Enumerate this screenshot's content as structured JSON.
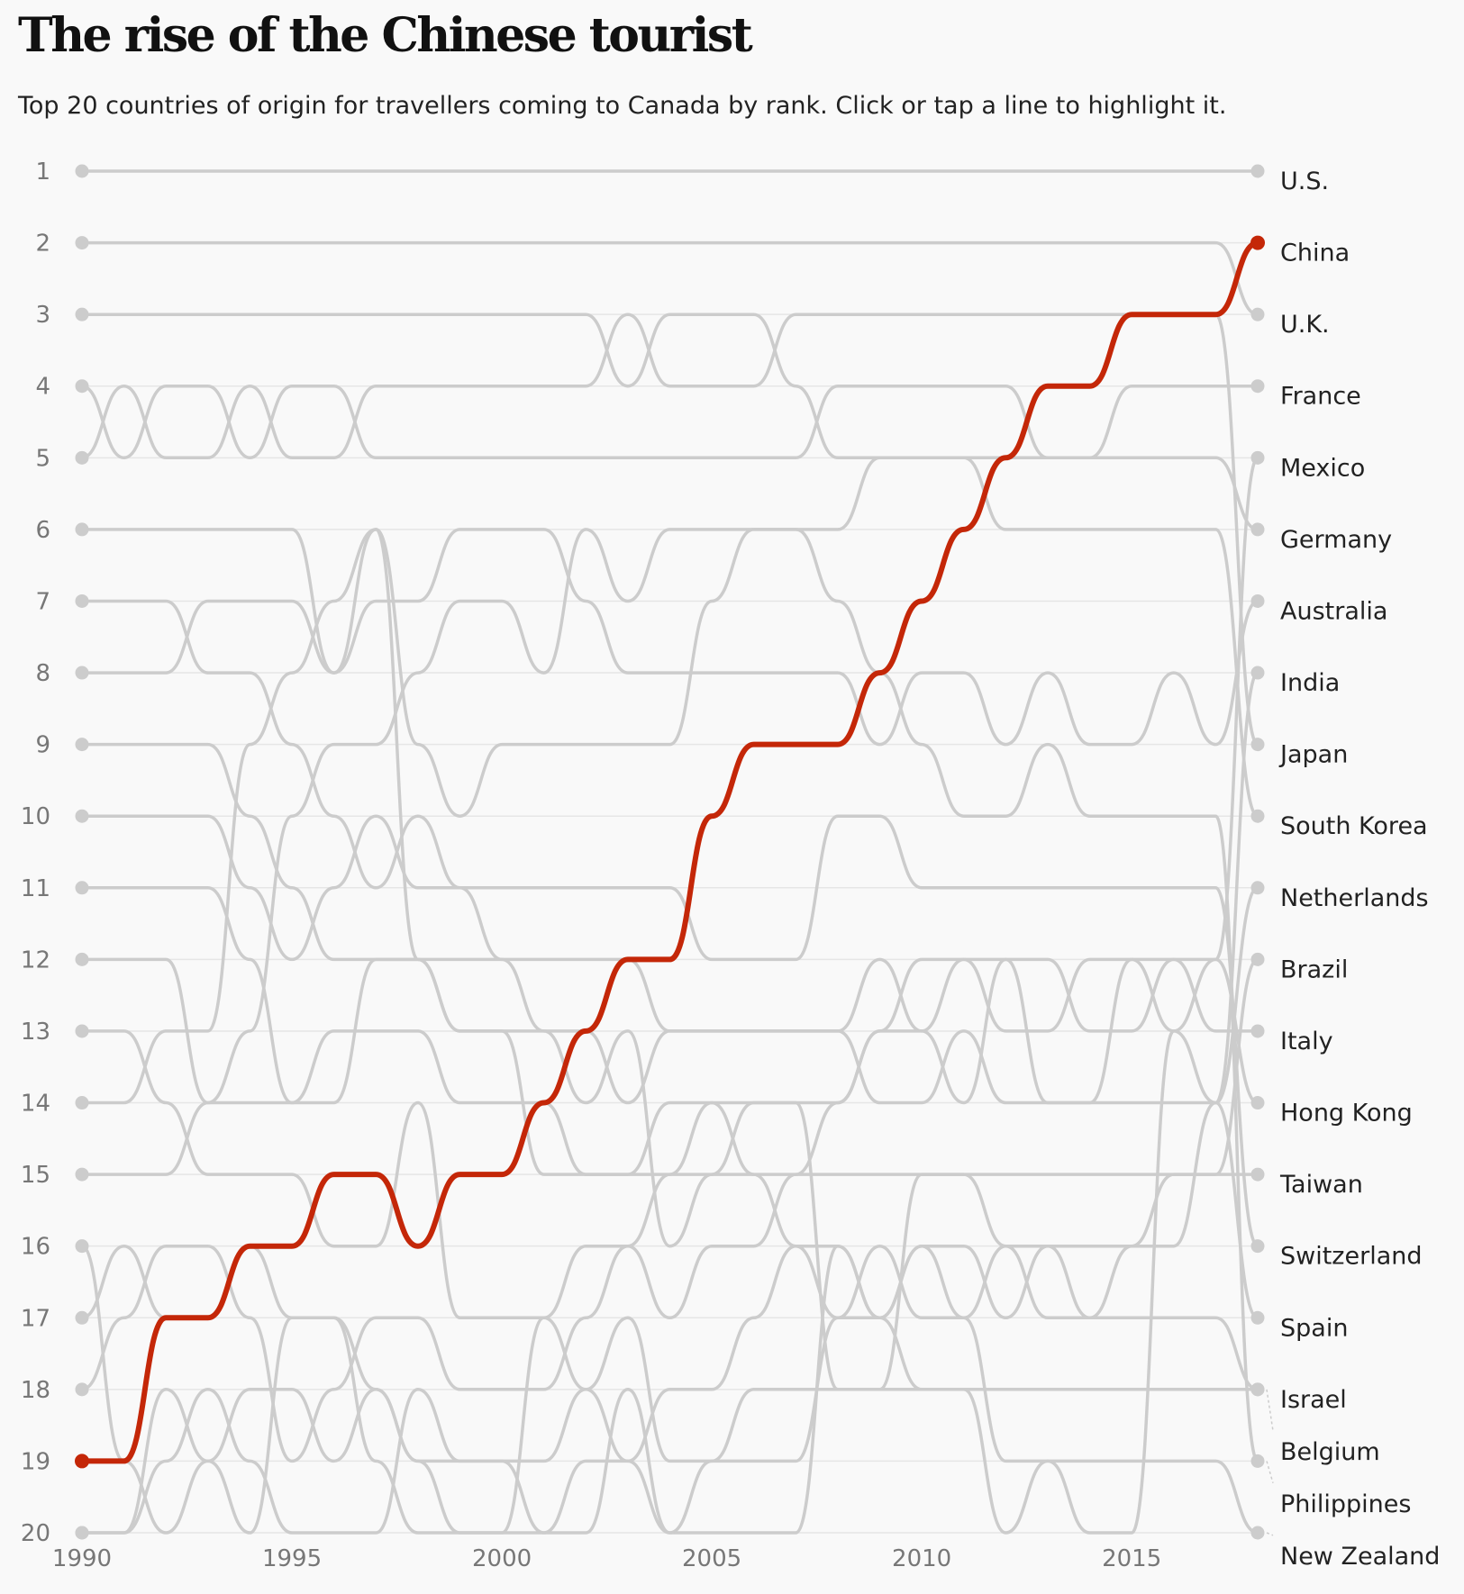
{
  "page": {
    "title": "The rise of the Chinese tourist",
    "subtitle": "Top 20 countries of origin for travellers coming to Canada by rank. Click or tap a line to highlight it."
  },
  "chart_data": {
    "type": "line",
    "title": "The rise of the Chinese tourist",
    "subtitle": "Top 20 countries of origin for travellers coming to Canada by rank. Click or tap a line to highlight it.",
    "x": [
      1990,
      1991,
      1992,
      1993,
      1994,
      1995,
      1996,
      1997,
      1998,
      1999,
      2000,
      2001,
      2002,
      2003,
      2004,
      2005,
      2006,
      2007,
      2008,
      2009,
      2010,
      2011,
      2012,
      2013,
      2014,
      2015,
      2016,
      2017,
      2018
    ],
    "xlim": [
      1990,
      2018
    ],
    "ylim": [
      1,
      20
    ],
    "y_reversed": true,
    "x_ticks": [
      "1990",
      "1995",
      "2000",
      "2005",
      "2010",
      "2015"
    ],
    "y_ticks": [
      "1",
      "2",
      "3",
      "4",
      "5",
      "6",
      "7",
      "8",
      "9",
      "10",
      "11",
      "12",
      "13",
      "14",
      "15",
      "16",
      "17",
      "18",
      "19",
      "20"
    ],
    "highlight": "China",
    "highlight_color": "#c42708",
    "line_color": "#cccccc",
    "grid": true,
    "series": [
      {
        "name": "U.S.",
        "values": [
          1,
          1,
          1,
          1,
          1,
          1,
          1,
          1,
          1,
          1,
          1,
          1,
          1,
          1,
          1,
          1,
          1,
          1,
          1,
          1,
          1,
          1,
          1,
          1,
          1,
          1,
          1,
          1,
          1
        ]
      },
      {
        "name": "China",
        "values": [
          19,
          19,
          17,
          17,
          16,
          16,
          15,
          15,
          16,
          15,
          15,
          14,
          13,
          12,
          12,
          10,
          9,
          9,
          9,
          8,
          7,
          6,
          5,
          4,
          4,
          3,
          3,
          3,
          2
        ]
      },
      {
        "name": "U.K.",
        "values": [
          2,
          2,
          2,
          2,
          2,
          2,
          2,
          2,
          2,
          2,
          2,
          2,
          2,
          2,
          2,
          2,
          2,
          2,
          2,
          2,
          2,
          2,
          2,
          2,
          2,
          2,
          2,
          2,
          3
        ]
      },
      {
        "name": "France",
        "values": [
          3,
          3,
          3,
          3,
          3,
          3,
          3,
          3,
          3,
          3,
          3,
          3,
          3,
          4,
          3,
          3,
          3,
          4,
          5,
          5,
          5,
          5,
          5,
          5,
          5,
          4,
          4,
          4,
          4
        ]
      },
      {
        "name": "Mexico",
        "values": [
          16,
          19,
          20,
          19,
          18,
          18,
          19,
          18,
          19,
          20,
          20,
          17,
          18,
          19,
          20,
          20,
          20,
          20,
          16,
          17,
          18,
          18,
          20,
          19,
          20,
          20,
          13,
          12,
          5
        ]
      },
      {
        "name": "Germany",
        "values": [
          4,
          5,
          4,
          4,
          5,
          4,
          4,
          5,
          5,
          5,
          5,
          5,
          5,
          5,
          5,
          5,
          5,
          5,
          4,
          4,
          4,
          4,
          4,
          5,
          5,
          5,
          5,
          5,
          6
        ]
      },
      {
        "name": "Australia",
        "values": [
          8,
          8,
          8,
          7,
          7,
          7,
          8,
          7,
          7,
          6,
          6,
          6,
          7,
          8,
          8,
          8,
          8,
          8,
          8,
          9,
          8,
          8,
          9,
          8,
          9,
          9,
          8,
          9,
          7
        ]
      },
      {
        "name": "India",
        "values": [
          18,
          17,
          16,
          16,
          17,
          19,
          18,
          17,
          17,
          18,
          18,
          18,
          17,
          16,
          17,
          16,
          16,
          15,
          15,
          15,
          15,
          15,
          16,
          16,
          16,
          16,
          16,
          14,
          8
        ]
      },
      {
        "name": "Japan",
        "values": [
          5,
          4,
          5,
          5,
          4,
          5,
          5,
          4,
          4,
          4,
          4,
          4,
          4,
          3,
          4,
          4,
          4,
          3,
          3,
          3,
          3,
          3,
          3,
          3,
          3,
          3,
          3,
          3,
          9
        ]
      },
      {
        "name": "South Korea",
        "values": [
          14,
          14,
          13,
          13,
          9,
          8,
          7,
          6,
          9,
          10,
          9,
          9,
          9,
          9,
          9,
          7,
          6,
          6,
          6,
          5,
          5,
          5,
          6,
          6,
          6,
          6,
          6,
          6,
          10
        ]
      },
      {
        "name": "Netherlands",
        "values": [
          10,
          10,
          10,
          10,
          11,
          12,
          11,
          10,
          11,
          11,
          12,
          12,
          12,
          12,
          13,
          13,
          13,
          13,
          13,
          14,
          14,
          13,
          14,
          14,
          14,
          14,
          14,
          14,
          11
        ]
      },
      {
        "name": "Brazil",
        "values": [
          20,
          20,
          18,
          19,
          20,
          17,
          17,
          19,
          20,
          20,
          20,
          20,
          20,
          18,
          20,
          19,
          19,
          19,
          17,
          16,
          17,
          17,
          16,
          17,
          17,
          16,
          15,
          15,
          12
        ]
      },
      {
        "name": "Italy",
        "values": [
          11,
          11,
          11,
          11,
          12,
          14,
          13,
          13,
          13,
          14,
          14,
          14,
          15,
          15,
          14,
          14,
          14,
          14,
          14,
          13,
          13,
          14,
          12,
          12,
          13,
          13,
          12,
          13,
          13
        ]
      },
      {
        "name": "Hong Kong",
        "values": [
          6,
          6,
          6,
          6,
          6,
          6,
          8,
          6,
          12,
          12,
          12,
          13,
          14,
          13,
          16,
          15,
          15,
          15,
          14,
          13,
          12,
          12,
          13,
          13,
          12,
          12,
          12,
          12,
          14
        ]
      },
      {
        "name": "Taiwan",
        "values": [
          17,
          16,
          17,
          17,
          16,
          17,
          17,
          18,
          19,
          19,
          19,
          19,
          18,
          17,
          19,
          19,
          18,
          18,
          18,
          18,
          15,
          15,
          15,
          15,
          15,
          15,
          15,
          15,
          15
        ]
      },
      {
        "name": "Switzerland",
        "values": [
          7,
          7,
          7,
          8,
          8,
          9,
          10,
          11,
          10,
          11,
          11,
          11,
          11,
          11,
          11,
          12,
          12,
          12,
          10,
          10,
          11,
          11,
          11,
          11,
          11,
          11,
          11,
          11,
          16
        ]
      },
      {
        "name": "Spain",
        "values": [
          12,
          12,
          12,
          14,
          14,
          14,
          14,
          12,
          12,
          13,
          13,
          13,
          13,
          14,
          13,
          13,
          13,
          13,
          13,
          12,
          13,
          12,
          12,
          14,
          14,
          12,
          13,
          14,
          17
        ]
      },
      {
        "name": "Israel",
        "values": [
          13,
          13,
          14,
          15,
          15,
          15,
          16,
          16,
          14,
          17,
          17,
          17,
          16,
          16,
          15,
          15,
          14,
          14,
          18,
          18,
          18,
          18,
          18,
          18,
          18,
          18,
          18,
          18,
          18
        ]
      },
      {
        "name": "Belgium",
        "values": [
          9,
          9,
          9,
          9,
          10,
          11,
          12,
          12,
          12,
          13,
          13,
          15,
          15,
          15,
          15,
          14,
          15,
          16,
          17,
          17,
          16,
          16,
          17,
          16,
          17,
          17,
          17,
          17,
          18
        ]
      },
      {
        "name": "Philippines",
        "values": [
          15,
          15,
          15,
          14,
          13,
          10,
          9,
          9,
          8,
          7,
          7,
          8,
          6,
          7,
          6,
          6,
          6,
          6,
          7,
          8,
          9,
          10,
          10,
          9,
          10,
          10,
          10,
          10,
          19
        ]
      },
      {
        "name": "New Zealand",
        "values": [
          20,
          20,
          19,
          18,
          19,
          20,
          20,
          20,
          18,
          19,
          19,
          20,
          19,
          19,
          18,
          18,
          17,
          16,
          16,
          17,
          16,
          17,
          19,
          19,
          19,
          19,
          19,
          19,
          20
        ]
      }
    ]
  }
}
